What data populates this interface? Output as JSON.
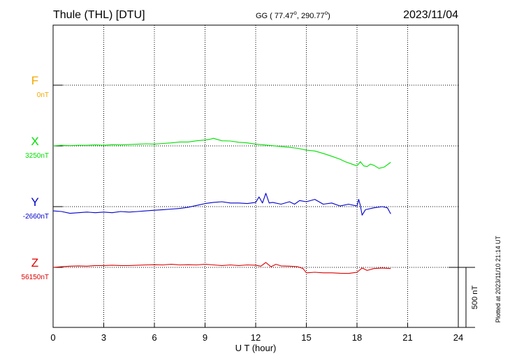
{
  "header": {
    "station": "Thule (THL)  [DTU]",
    "coords": "GG ( 77.47",
    "coords_mid": ", 290.77",
    "coords_end": ")",
    "date": "2023/11/04"
  },
  "side_note": "Plotted at 2023/11/10 21:14 UT",
  "scale_bar_label": "500 nT",
  "chart_data": {
    "type": "line",
    "title": "Thule (THL)  [DTU]",
    "xlabel": "U T (hour)",
    "ylabel": "",
    "xlim": [
      0,
      24
    ],
    "x_ticks": [
      0,
      3,
      6,
      9,
      12,
      15,
      18,
      21,
      24
    ],
    "row_spacing_nT": 500,
    "grid": true,
    "series": [
      {
        "name": "F",
        "baseline_label": "0nT",
        "color": "#f0a800",
        "values": []
      },
      {
        "name": "X",
        "baseline_label": "3250nT",
        "color": "#00e000",
        "x": [
          0,
          0.5,
          1,
          1.5,
          2,
          2.5,
          3,
          3.5,
          4,
          4.5,
          5,
          5.5,
          6,
          6.5,
          7,
          7.5,
          8,
          8.5,
          9,
          9.3,
          9.5,
          10,
          10.5,
          11,
          11.5,
          12,
          12.5,
          13,
          13.5,
          14,
          14.5,
          15,
          15.5,
          16,
          16.5,
          17,
          17.3,
          17.6,
          18,
          18.2,
          18.4,
          18.6,
          18.8,
          19,
          19.3,
          19.6,
          20
        ],
        "y": [
          0,
          5,
          2,
          5,
          6,
          8,
          5,
          10,
          8,
          11,
          14,
          17,
          15,
          20,
          25,
          32,
          32,
          42,
          48,
          55,
          62,
          42,
          40,
          30,
          25,
          15,
          8,
          2,
          -5,
          -12,
          -20,
          -35,
          -42,
          -62,
          -85,
          -110,
          -130,
          -145,
          -165,
          -130,
          -165,
          -170,
          -150,
          -160,
          -185,
          -175,
          -135
        ]
      },
      {
        "name": "Y",
        "baseline_label": "-2660nT",
        "color": "#0000cc",
        "x": [
          0,
          0.5,
          1,
          1.5,
          2,
          2.5,
          3,
          3.5,
          4,
          4.5,
          5,
          5.5,
          6,
          6.5,
          7,
          7.5,
          8,
          8.5,
          9,
          9.5,
          10,
          10.5,
          11,
          11.5,
          12,
          12.2,
          12.4,
          12.6,
          12.8,
          13,
          13.5,
          14,
          14.3,
          14.6,
          15,
          15.5,
          16,
          16.5,
          17,
          17.5,
          18,
          18.1,
          18.2,
          18.3,
          18.5,
          19,
          19.5,
          19.8,
          20
        ],
        "y": [
          -35,
          -40,
          -55,
          -50,
          -45,
          -50,
          -45,
          -50,
          -40,
          -45,
          -40,
          -35,
          -30,
          -25,
          -20,
          -15,
          -5,
          10,
          25,
          35,
          40,
          30,
          30,
          25,
          35,
          80,
          30,
          110,
          30,
          35,
          20,
          40,
          20,
          50,
          40,
          60,
          20,
          30,
          5,
          20,
          5,
          60,
          10,
          -70,
          -25,
          -10,
          0,
          -10,
          -60
        ]
      },
      {
        "name": "Z",
        "baseline_label": "56150nT",
        "color": "#dd0000",
        "x": [
          0,
          0.5,
          1,
          1.5,
          2,
          2.5,
          3,
          3.5,
          4,
          4.5,
          5,
          5.5,
          6,
          6.5,
          7,
          7.5,
          8,
          8.5,
          9,
          9.5,
          10,
          10.5,
          11,
          11.5,
          12,
          12.3,
          12.6,
          12.9,
          13.2,
          13.5,
          14,
          14.5,
          14.8,
          15,
          15.5,
          16,
          16.5,
          17,
          17.5,
          18,
          18.3,
          18.6,
          19,
          19.5,
          20
        ],
        "y": [
          0,
          5,
          10,
          12,
          10,
          15,
          15,
          18,
          15,
          15,
          18,
          20,
          22,
          20,
          25,
          20,
          22,
          20,
          25,
          20,
          15,
          20,
          15,
          20,
          18,
          10,
          40,
          5,
          25,
          12,
          10,
          5,
          -10,
          -45,
          -40,
          -45,
          -45,
          -48,
          -50,
          -40,
          -5,
          -25,
          -10,
          -5,
          -10
        ]
      }
    ]
  }
}
